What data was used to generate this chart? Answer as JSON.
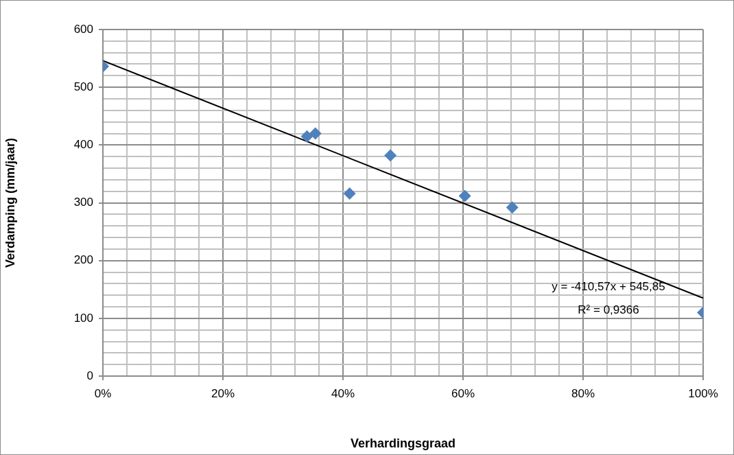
{
  "chart_data": {
    "type": "scatter",
    "xlabel": "Verhardingsgraad",
    "ylabel": "Verdamping (mm/jaar)",
    "series": [
      {
        "color": "#4f81bd",
        "marker": "diamond",
        "x": [
          0,
          0.34,
          0.354,
          0.411,
          0.479,
          0.603,
          0.682,
          1
        ],
        "values": [
          536,
          415,
          420,
          316,
          382,
          312,
          292,
          110
        ]
      },
      {
        "type": "line",
        "color": "#000000",
        "marker": "none",
        "line_style": "solid",
        "x": [
          0,
          1
        ],
        "values": [
          546,
          135
        ]
      }
    ],
    "annotations": [
      "y = -410,57x + 545,85",
      "R² = 0,9366"
    ],
    "xlim": [
      0,
      1
    ],
    "xticks": [
      {
        "value": 0,
        "label": "0%"
      },
      {
        "value": 0.04,
        "label": null
      },
      {
        "value": 0.08,
        "label": null
      },
      {
        "value": 0.12,
        "label": null
      },
      {
        "value": 0.16,
        "label": null
      },
      {
        "value": 0.2,
        "label": "20%"
      },
      {
        "value": 0.24,
        "label": null
      },
      {
        "value": 0.28,
        "label": null
      },
      {
        "value": 0.32,
        "label": null
      },
      {
        "value": 0.36,
        "label": null
      },
      {
        "value": 0.4,
        "label": "40%"
      },
      {
        "value": 0.44,
        "label": null
      },
      {
        "value": 0.48,
        "label": null
      },
      {
        "value": 0.52,
        "label": null
      },
      {
        "value": 0.56,
        "label": null
      },
      {
        "value": 0.6,
        "label": "60%"
      },
      {
        "value": 0.64,
        "label": null
      },
      {
        "value": 0.68,
        "label": null
      },
      {
        "value": 0.72,
        "label": null
      },
      {
        "value": 0.76,
        "label": null
      },
      {
        "value": 0.8,
        "label": "80%"
      },
      {
        "value": 0.84,
        "label": null
      },
      {
        "value": 0.88,
        "label": null
      },
      {
        "value": 0.92,
        "label": null
      },
      {
        "value": 0.96,
        "label": null
      },
      {
        "value": 1,
        "label": "100%"
      }
    ],
    "ylim": [
      0,
      600
    ],
    "yticks": [
      0,
      {
        "value": 20,
        "label": null
      },
      {
        "value": 40,
        "label": null
      },
      {
        "value": 60,
        "label": null
      },
      {
        "value": 80,
        "label": null
      },
      100,
      {
        "value": 120,
        "label": null
      },
      {
        "value": 140,
        "label": null
      },
      {
        "value": 160,
        "label": null
      },
      {
        "value": 180,
        "label": null
      },
      200,
      {
        "value": 220,
        "label": null
      },
      {
        "value": 240,
        "label": null
      },
      {
        "value": 260,
        "label": null
      },
      {
        "value": 280,
        "label": null
      },
      300,
      {
        "value": 320,
        "label": null
      },
      {
        "value": 340,
        "label": null
      },
      {
        "value": 360,
        "label": null
      },
      {
        "value": 380,
        "label": null
      },
      400,
      {
        "value": 420,
        "label": null
      },
      {
        "value": 440,
        "label": null
      },
      {
        "value": 460,
        "label": null
      },
      {
        "value": 480,
        "label": null
      },
      500,
      {
        "value": 520,
        "label": null
      },
      {
        "value": 540,
        "label": null
      },
      {
        "value": 560,
        "label": null
      },
      {
        "value": 580,
        "label": null
      },
      600
    ],
    "grid": true,
    "legend": false
  }
}
